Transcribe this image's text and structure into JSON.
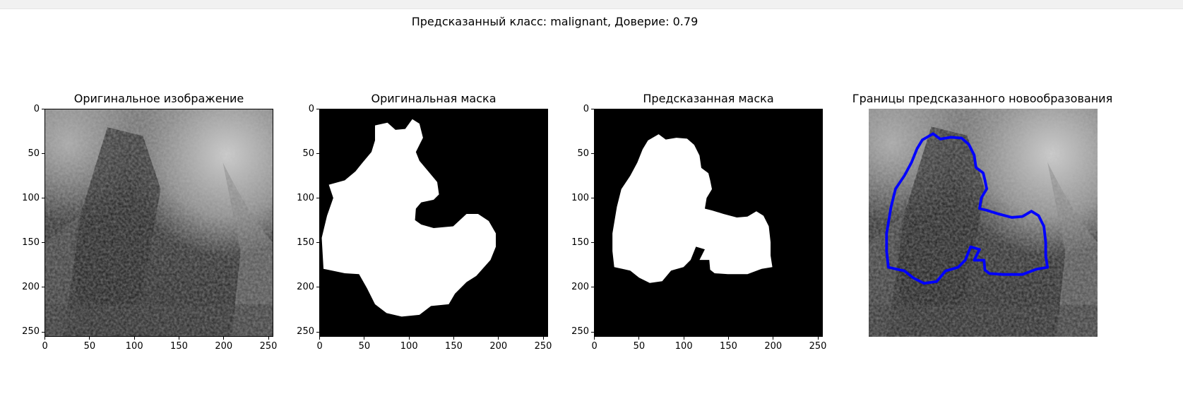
{
  "figure": {
    "suptitle": "Предсказанный класс: malignant, Доверие: 0.79",
    "predicted_class": "malignant",
    "confidence": 0.79
  },
  "panels": [
    {
      "title": "Оригинальное изображение",
      "kind": "ultrasound-image",
      "axes_visible": true
    },
    {
      "title": "Оригинальная маска",
      "kind": "binary-mask",
      "axes_visible": true
    },
    {
      "title": "Предсказанная маска",
      "kind": "binary-mask",
      "axes_visible": true
    },
    {
      "title": "Границы предсказанного новообразования",
      "kind": "ultrasound-with-contour",
      "axes_visible": false,
      "contour_color": "#0000ff"
    }
  ],
  "axes": {
    "x_ticks": [
      "0",
      "50",
      "100",
      "150",
      "200",
      "250"
    ],
    "y_ticks": [
      "0",
      "50",
      "100",
      "150",
      "200",
      "250"
    ],
    "x_tick_values": [
      0,
      50,
      100,
      150,
      200,
      250
    ],
    "y_tick_values": [
      0,
      50,
      100,
      150,
      200,
      250
    ],
    "image_size": [
      256,
      256
    ]
  },
  "colors": {
    "mask_foreground": "#ffffff",
    "mask_background": "#000000",
    "contour": "#0000ff",
    "toolbar": "#f1f1f1"
  }
}
